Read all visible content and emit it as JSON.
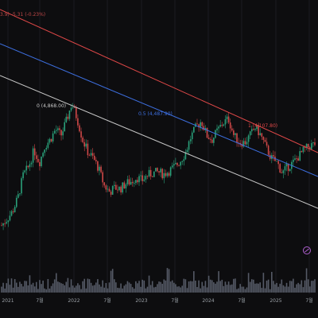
{
  "legend": {
    "ohlc_text": "3.9) -5.31 (-0.23%)"
  },
  "colors": {
    "up": "#2aa07a",
    "down": "#d04848",
    "fib_top": "#e04848",
    "fib_mid": "#3d6fe0",
    "fib_bottom": "#c8c8c8",
    "volume": "#555a66",
    "background": "#0d0d0f",
    "grid": "#1c1c20",
    "marker": "#b060d0"
  },
  "fib_levels": [
    {
      "level": "0",
      "price_label": "0 (4,868.00)",
      "color": "#c8c8c8"
    },
    {
      "level": "0.5",
      "price_label": "0.5 (4,487.90)",
      "color": "#3d6fe0"
    },
    {
      "level": "1",
      "price_label": "1 (4,107.80)",
      "color": "#e04848"
    }
  ],
  "time_axis": {
    "ticks": [
      "2021",
      "7월",
      "2022",
      "7월",
      "2023",
      "7월",
      "2024",
      "7월",
      "2025",
      "7월"
    ]
  },
  "marker_icon": "alert-circle-icon",
  "chart_data": {
    "type": "candlestick",
    "title": "",
    "x": [
      "2020-10",
      "2020-11",
      "2020-12",
      "2021-01",
      "2021-02",
      "2021-03",
      "2021-04",
      "2021-05",
      "2021-06",
      "2021-07",
      "2021-08",
      "2021-09",
      "2021-10",
      "2021-11",
      "2021-12",
      "2022-01",
      "2022-02",
      "2022-03",
      "2022-04",
      "2022-05",
      "2022-06",
      "2022-07",
      "2022-08",
      "2022-09",
      "2022-10",
      "2022-11",
      "2022-12",
      "2023-01",
      "2023-02",
      "2023-03",
      "2023-04",
      "2023-05",
      "2023-06",
      "2023-07",
      "2023-08",
      "2023-09",
      "2023-10",
      "2023-11",
      "2023-12",
      "2024-01",
      "2024-02",
      "2024-03",
      "2024-04",
      "2024-05",
      "2024-06",
      "2024-07",
      "2024-08",
      "2024-09",
      "2024-10",
      "2024-11",
      "2024-12",
      "2025-01",
      "2025-02",
      "2025-03",
      "2025-04",
      "2025-05",
      "2025-06",
      "2025-07",
      "2025-08"
    ],
    "close": [
      3700,
      3760,
      3830,
      3960,
      4180,
      4260,
      4420,
      4300,
      4460,
      4520,
      4620,
      4560,
      4700,
      4868,
      4720,
      4520,
      4400,
      4340,
      4240,
      4080,
      4020,
      4060,
      4050,
      4100,
      4120,
      4160,
      4130,
      4180,
      4200,
      4210,
      4190,
      4220,
      4260,
      4310,
      4390,
      4540,
      4640,
      4700,
      4560,
      4520,
      4610,
      4680,
      4720,
      4560,
      4500,
      4490,
      4560,
      4640,
      4560,
      4440,
      4340,
      4300,
      4200,
      4260,
      4300,
      4360,
      4420,
      4460,
      4480
    ],
    "series": [
      {
        "name": "",
        "type": "volume"
      }
    ],
    "annotations": [
      "0 (4,868.00)",
      "0.5 (4,487.90)",
      "1 (4,107.80)"
    ],
    "legend": "none",
    "grid": true
  }
}
